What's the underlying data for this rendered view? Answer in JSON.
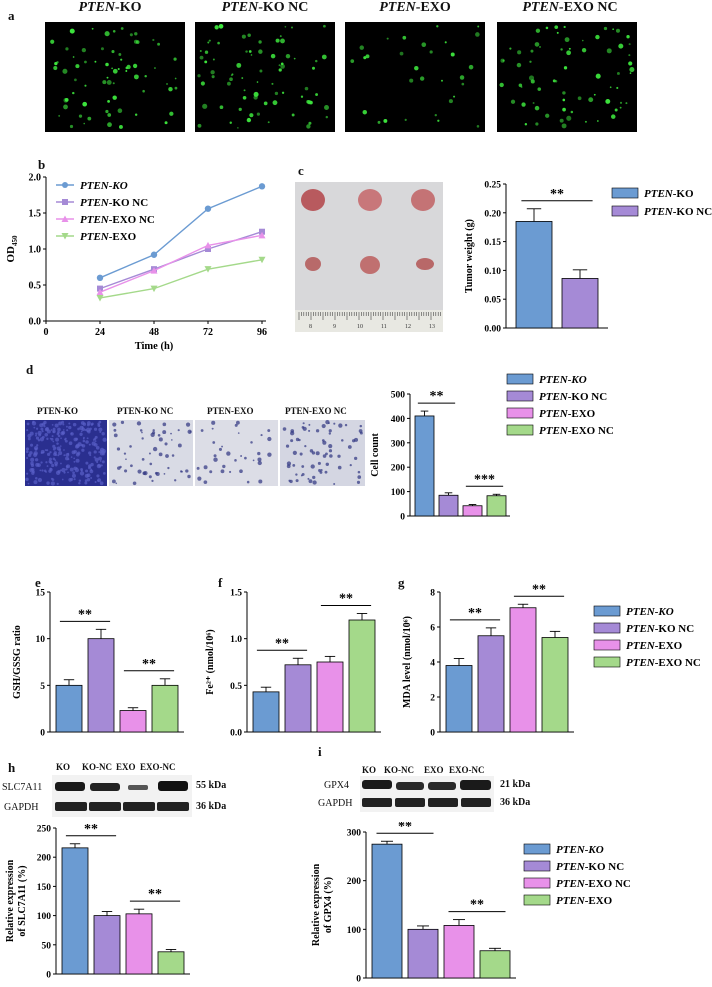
{
  "panels": {
    "a": {
      "letter": "a",
      "labels": [
        {
          "it": "PTEN",
          "rest": "-KO"
        },
        {
          "it": "PTEN",
          "rest": "-KO NC"
        },
        {
          "it": "PTEN",
          "rest": "-EXO"
        },
        {
          "it": "PTEN",
          "rest": "-EXO NC"
        }
      ]
    },
    "b": {
      "letter": "b"
    },
    "c": {
      "letter": "c",
      "ruler_ticks": [
        "8",
        "9",
        "10",
        "11",
        "12",
        "13"
      ]
    },
    "d": {
      "letter": "d",
      "micro_labels": [
        "PTEN-KO",
        "PTEN-KO NC",
        "PTEN-EXO",
        "PTEN-EXO NC"
      ]
    },
    "e": {
      "letter": "e"
    },
    "f": {
      "letter": "f"
    },
    "g": {
      "letter": "g"
    },
    "h": {
      "letter": "h",
      "lanes": [
        "KO",
        "KO-NC",
        "EXO",
        "EXO-NC"
      ],
      "protein": "SLC7A11",
      "protein_kda": "55 kDa",
      "control": "GAPDH",
      "control_kda": "36 kDa"
    },
    "i": {
      "letter": "i",
      "lanes": [
        "KO",
        "KO-NC",
        "EXO",
        "EXO-NC"
      ],
      "protein": "GPX4",
      "protein_kda": "21 kDa",
      "control": "GAPDH",
      "control_kda": "36 kDa"
    }
  },
  "colors": {
    "blue": "#6b9bd2",
    "purple": "#a58ad6",
    "pink": "#e891e9",
    "green": "#a4d98a"
  },
  "chart_data": [
    {
      "id": "b",
      "type": "line",
      "x": [
        24,
        48,
        72,
        96
      ],
      "xlabel": "Time (h)",
      "ylabel": "OD",
      "ylabel_sub": "450",
      "xlim": [
        0,
        96
      ],
      "ylim": [
        0,
        2.0
      ],
      "xticks": [
        "0",
        "24",
        "48",
        "72",
        "96"
      ],
      "yticks": [
        "0.0",
        "0.5",
        "1.0",
        "1.5",
        "2.0"
      ],
      "series": [
        {
          "name_it": "PTEN-KO",
          "name_rest": "",
          "values": [
            0.6,
            0.92,
            1.56,
            1.87
          ],
          "color": "#6b9bd2",
          "marker": "circle"
        },
        {
          "name_it": "PTEN",
          "name_rest": "-KO NC",
          "values": [
            0.45,
            0.72,
            1.0,
            1.24
          ],
          "color": "#a58ad6",
          "marker": "square"
        },
        {
          "name_it": "PTEN",
          "name_rest": "-EXO NC",
          "values": [
            0.4,
            0.7,
            1.05,
            1.19
          ],
          "color": "#e891e9",
          "marker": "triangle-up"
        },
        {
          "name_it": "PTEN",
          "name_rest": "-EXO",
          "values": [
            0.32,
            0.45,
            0.72,
            0.85
          ],
          "color": "#a4d98a",
          "marker": "triangle-down"
        }
      ]
    },
    {
      "id": "c",
      "type": "bar",
      "categories": [
        "PTEN-KO",
        "PTEN-KO NC"
      ],
      "values": [
        0.185,
        0.086
      ],
      "errors": [
        0.022,
        0.015
      ],
      "ylabel": "Tumor weight (g)",
      "ylim": [
        0,
        0.25
      ],
      "yticks": [
        "0.00",
        "0.05",
        "0.10",
        "0.15",
        "0.20",
        "0.25"
      ],
      "significance": [
        "**"
      ],
      "legend": [
        {
          "it": "PTEN",
          "rest": "-KO"
        },
        {
          "it": "PTEN",
          "rest": "-KO NC"
        }
      ]
    },
    {
      "id": "d",
      "type": "bar",
      "categories": [
        "PTEN-KO",
        "PTEN-KO NC",
        "PTEN-EXO",
        "PTEN-EXO NC"
      ],
      "values": [
        410,
        85,
        42,
        83
      ],
      "errors": [
        20,
        10,
        5,
        6
      ],
      "ylabel": "Cell count",
      "ylim": [
        0,
        500
      ],
      "yticks": [
        "0",
        "100",
        "200",
        "300",
        "400",
        "500"
      ],
      "significance": [
        "**",
        "***"
      ],
      "legend": [
        {
          "it": "PTEN-KO",
          "rest": ""
        },
        {
          "it": "PTEN",
          "rest": "-KO NC"
        },
        {
          "it": "PTEN",
          "rest": "-EXO"
        },
        {
          "it": "PTEN",
          "rest": "-EXO NC"
        }
      ]
    },
    {
      "id": "e",
      "type": "bar",
      "values": [
        5.0,
        10.0,
        2.3,
        5.0
      ],
      "errors": [
        0.6,
        1.0,
        0.3,
        0.7
      ],
      "ylabel": "GSH/GSSG ratio",
      "ylim": [
        0,
        15
      ],
      "yticks": [
        "0",
        "5",
        "10",
        "15"
      ],
      "significance": [
        "**",
        "**"
      ]
    },
    {
      "id": "f",
      "type": "bar",
      "values": [
        0.43,
        0.72,
        0.75,
        1.2
      ],
      "errors": [
        0.05,
        0.07,
        0.06,
        0.07
      ],
      "ylabel": "Fe²⁺ (nmol/10⁶)",
      "ylim": [
        0,
        1.5
      ],
      "yticks": [
        "0.0",
        "0.5",
        "1.0",
        "1.5"
      ],
      "significance": [
        "**",
        "**"
      ]
    },
    {
      "id": "g",
      "type": "bar",
      "values": [
        3.8,
        5.5,
        7.1,
        5.4
      ],
      "errors": [
        0.4,
        0.45,
        0.2,
        0.35
      ],
      "ylabel": "MDA level (nmol/10⁶)",
      "ylim": [
        0,
        8
      ],
      "yticks": [
        "0",
        "2",
        "4",
        "6",
        "8"
      ],
      "significance": [
        "**",
        "**"
      ],
      "legend": [
        {
          "it": "PTEN-KO",
          "rest": ""
        },
        {
          "it": "PTEN",
          "rest": "-KO NC"
        },
        {
          "it": "PTEN",
          "rest": "-EXO"
        },
        {
          "it": "PTEN",
          "rest": "-EXO NC"
        }
      ]
    },
    {
      "id": "h",
      "type": "bar",
      "values": [
        216,
        100,
        103,
        38
      ],
      "errors": [
        7,
        7,
        8,
        4
      ],
      "ylabel": "Relative expression",
      "ylabel2": "of SLC7A11 (%)",
      "ylim": [
        0,
        250
      ],
      "yticks": [
        "0",
        "50",
        "100",
        "150",
        "200",
        "250"
      ],
      "significance": [
        "**",
        "**"
      ]
    },
    {
      "id": "i",
      "type": "bar",
      "values": [
        275,
        100,
        108,
        56
      ],
      "errors": [
        6,
        7,
        12,
        5
      ],
      "ylabel": "Relative expression",
      "ylabel2": "of GPX4 (%)",
      "ylim": [
        0,
        300
      ],
      "yticks": [
        "0",
        "100",
        "200",
        "300"
      ],
      "significance": [
        "**",
        "**"
      ],
      "legend": [
        {
          "it": "PTEN-KO",
          "rest": ""
        },
        {
          "it": "PTEN",
          "rest": "-KO NC"
        },
        {
          "it": "PTEN",
          "rest": "-EXO NC"
        },
        {
          "it": "PTEN",
          "rest": "-EXO"
        }
      ]
    }
  ]
}
